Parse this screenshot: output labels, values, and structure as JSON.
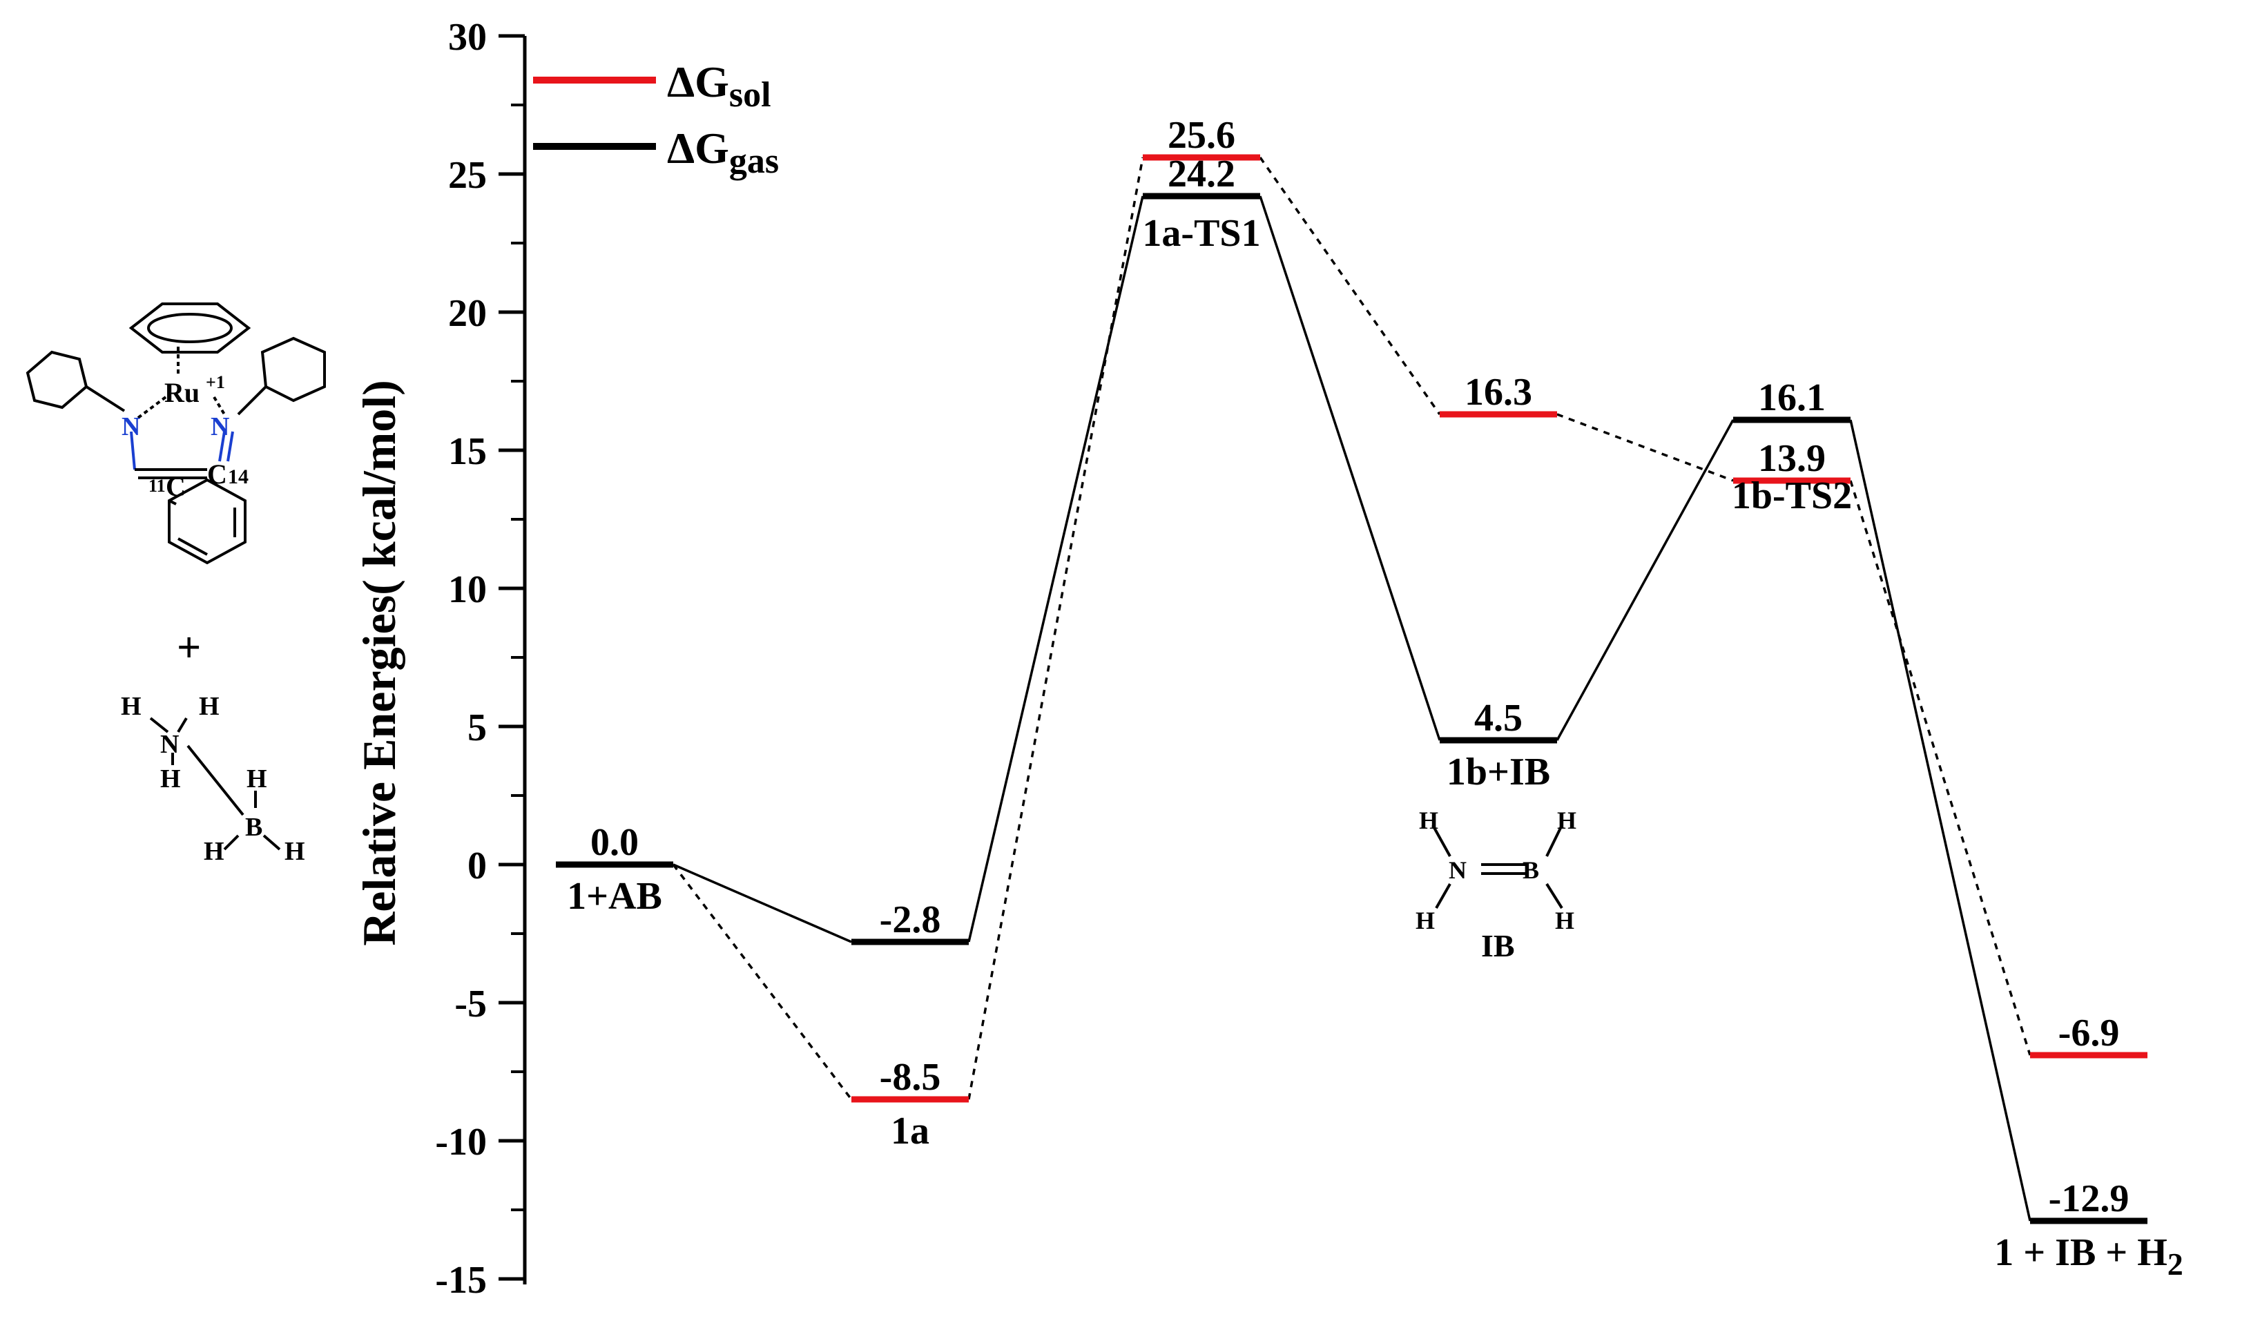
{
  "chart_data": {
    "type": "line",
    "title": "",
    "xlabel": "",
    "ylabel": "Relative Energies( kcal/mol)",
    "ylim": [
      -15,
      30
    ],
    "yticks": [
      30,
      25,
      20,
      15,
      10,
      5,
      0,
      -5,
      -10,
      -15
    ],
    "grid": false,
    "legend_position": "top-left",
    "states": [
      "1+AB",
      "1a",
      "1a-TS1",
      "1b+IB",
      "1b-TS2",
      "1 + IB + H2"
    ],
    "state_labels": [
      {
        "text": "1+AB",
        "sub": ""
      },
      {
        "text": "1a",
        "sub": ""
      },
      {
        "text": "1a-TS1",
        "sub": ""
      },
      {
        "text": "1b+IB",
        "sub": ""
      },
      {
        "text": "1b-TS2",
        "sub": ""
      },
      {
        "text": "1 + IB +  H",
        "sub": "2"
      }
    ],
    "series": [
      {
        "name": "ΔG",
        "subscript": "sol",
        "color": "#e8141b",
        "connector": "dotted",
        "values": [
          0.0,
          -8.5,
          25.6,
          16.3,
          13.9,
          -6.9
        ],
        "labels": [
          "0.0",
          "-8.5",
          "25.6",
          "16.3",
          "13.9",
          "-6.9"
        ]
      },
      {
        "name": "ΔG",
        "subscript": "gas",
        "color": "#000000",
        "connector": "solid",
        "values": [
          0.0,
          -2.8,
          24.2,
          4.5,
          16.1,
          -12.9
        ],
        "labels": [
          "0.0",
          "-2.8",
          "24.2",
          "4.5",
          "16.1",
          "-12.9"
        ]
      }
    ]
  },
  "molecules": {
    "ru_complex": {
      "metal": "Ru",
      "charge": "+1",
      "n_left": "N",
      "n_right": "N",
      "c_left": "C",
      "c_right": "C",
      "c_left_num": "11",
      "c_right_num": "14"
    },
    "plus": "+",
    "ammonia_borane": {
      "h": "H",
      "n": "N",
      "b": "B"
    },
    "iminoborane": {
      "h": "H",
      "h_b": "H",
      "n": "N",
      "b": "B",
      "caption": "IB"
    }
  },
  "colors": {
    "sol": "#e8141b",
    "gas": "#000000",
    "nitrogen": "#1a3fd0"
  }
}
